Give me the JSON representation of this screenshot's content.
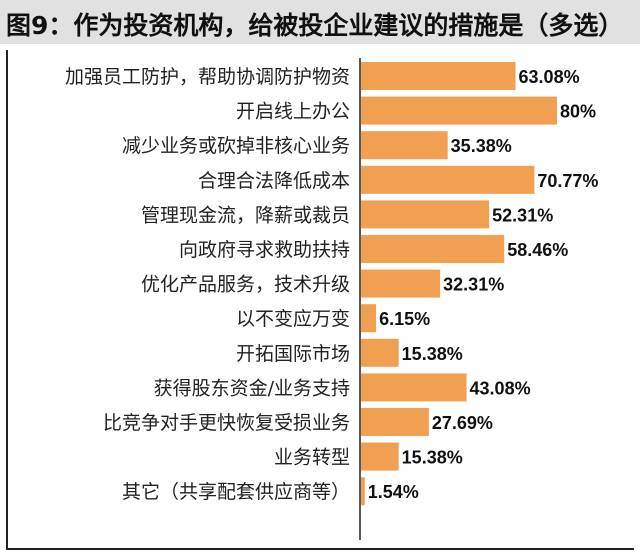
{
  "title": "图9：作为投资机构，给被投企业建议的措施是（多选）",
  "colors": {
    "bar": "#f0a050",
    "title_bg": "#e1e1e1",
    "axis": "#222222"
  },
  "chart_data": {
    "type": "bar",
    "orientation": "horizontal",
    "title": "图9：作为投资机构，给被投企业建议的措施是（多选）",
    "xlabel": "",
    "ylabel": "",
    "xlim": [
      0,
      100
    ],
    "grid": false,
    "categories": [
      "加强员工防护，帮助协调防护物资",
      "开启线上办公",
      "减少业务或砍掉非核心业务",
      "合理合法降低成本",
      "管理现金流，降薪或裁员",
      "向政府寻求救助扶持",
      "优化产品服务，技术升级",
      "以不变应万变",
      "开拓国际市场",
      "获得股东资金/业务支持",
      "比竞争对手更快恢复受损业务",
      "业务转型",
      "其它（共享配套供应商等）"
    ],
    "values": [
      63.08,
      80,
      35.38,
      70.77,
      52.31,
      58.46,
      32.31,
      6.15,
      15.38,
      43.08,
      27.69,
      15.38,
      1.54
    ],
    "value_labels": [
      "63.08%",
      "80%",
      "35.38%",
      "70.77%",
      "52.31%",
      "58.46%",
      "32.31%",
      "6.15%",
      "15.38%",
      "43.08%",
      "27.69%",
      "15.38%",
      "1.54%"
    ]
  }
}
